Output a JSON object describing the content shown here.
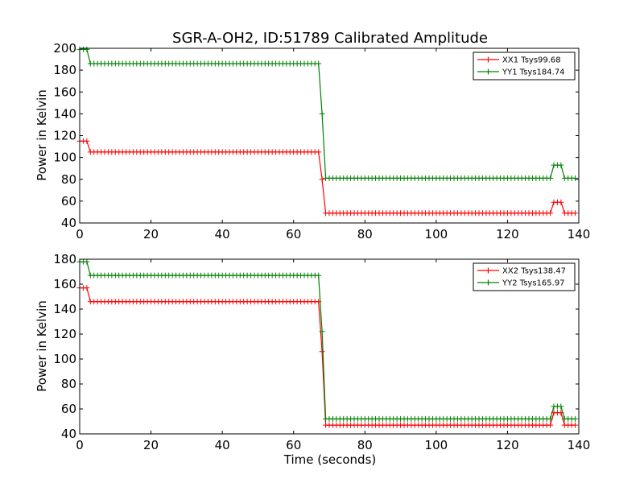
{
  "figure_title": "SGR-A-OH2, ID:51789 Calibrated Amplitude",
  "chart_data": [
    {
      "type": "line",
      "xlabel": "",
      "ylabel": "Power in Kelvin",
      "xlim": [
        0,
        140
      ],
      "ylim": [
        40,
        200
      ],
      "xticks": [
        "0",
        "20",
        "40",
        "60",
        "80",
        "100",
        "120",
        "140"
      ],
      "yticks": [
        "40",
        "60",
        "80",
        "100",
        "120",
        "140",
        "160",
        "180",
        "200"
      ],
      "grid": false,
      "legend_position": "top-right",
      "series": [
        {
          "name": "XX1 Tsys99.68",
          "color": "#ff0000",
          "levels": {
            "start": 115,
            "plateau": 105,
            "drop_mid": 80,
            "low": 49,
            "bump": 59
          }
        },
        {
          "name": "YY1 Tsys184.74",
          "color": "#008000",
          "levels": {
            "start": 199,
            "plateau": 186,
            "drop_mid": 140,
            "low": 81,
            "bump": 93
          }
        }
      ]
    },
    {
      "type": "line",
      "xlabel": "Time (seconds)",
      "ylabel": "Power in Kelvin",
      "xlim": [
        0,
        140
      ],
      "ylim": [
        40,
        180
      ],
      "xticks": [
        "0",
        "20",
        "40",
        "60",
        "80",
        "100",
        "120",
        "140"
      ],
      "yticks": [
        "40",
        "60",
        "80",
        "100",
        "120",
        "140",
        "160",
        "180"
      ],
      "grid": false,
      "legend_position": "top-right",
      "series": [
        {
          "name": "XX2 Tsys138.47",
          "color": "#ff0000",
          "levels": {
            "start": 157,
            "plateau": 146,
            "drop_mid": 106,
            "low": 47,
            "bump": 57
          }
        },
        {
          "name": "YY2 Tsys165.97",
          "color": "#008000",
          "levels": {
            "start": 178,
            "plateau": 167,
            "drop_mid": 122,
            "low": 52,
            "bump": 62
          }
        }
      ]
    }
  ]
}
